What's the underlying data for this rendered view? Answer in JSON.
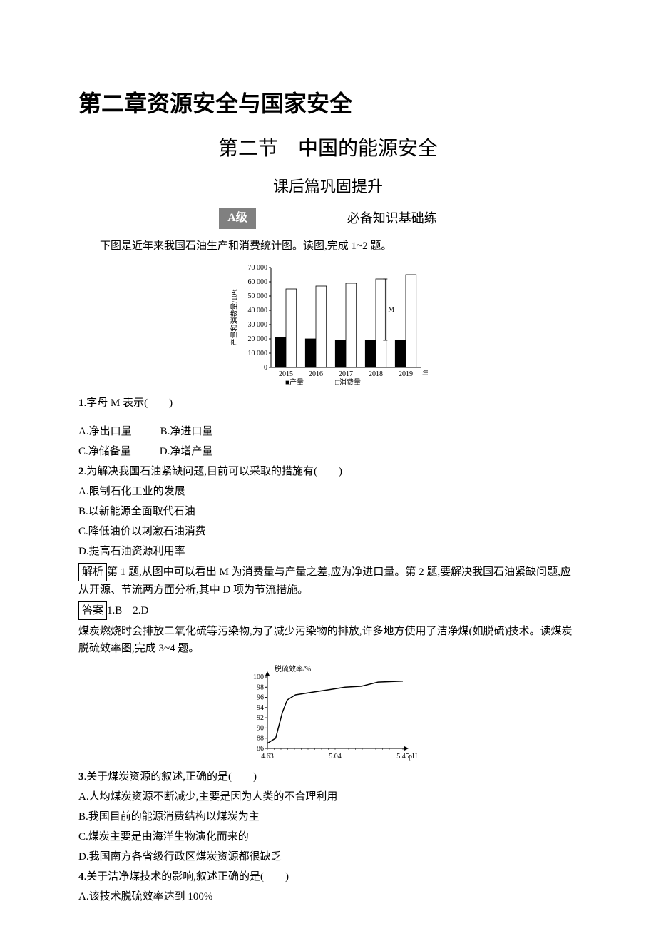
{
  "chapter_title": "第二章资源安全与国家安全",
  "section_title": "第二节　中国的能源安全",
  "subsection_title": "课后篇巩固提升",
  "level_badge": "A级",
  "level_text": "必备知识基础练",
  "intro1": "下图是近年来我国石油生产和消费统计图。读图,完成 1~2 题。",
  "chart1": {
    "type": "bar",
    "y_label": "产量和消费量/10⁴t",
    "y_ticks": [
      "0",
      "10 000",
      "20 000",
      "30 000",
      "40 000",
      "50 000",
      "60 000",
      "70 000"
    ],
    "y_max": 70000,
    "categories": [
      "2015",
      "2016",
      "2017",
      "2018",
      "2019"
    ],
    "x_label_suffix": "年份",
    "series": [
      {
        "name": "产量",
        "color": "#000000",
        "values": [
          21000,
          20000,
          19000,
          19000,
          19000
        ]
      },
      {
        "name": "消费量",
        "color": "#ffffff",
        "values": [
          55000,
          57000,
          59000,
          62000,
          65000
        ]
      }
    ],
    "annotation": {
      "text": "M",
      "x_index": 3
    },
    "legend": [
      "产量",
      "消费量"
    ],
    "legend_markers": [
      "■",
      "□"
    ],
    "font_size": 10,
    "axis_color": "#000000",
    "background_color": "#ffffff"
  },
  "q1": {
    "number": "1",
    "text": ".字母 M 表示(　　)",
    "options": {
      "A": "A.净出口量",
      "B": "B.净进口量",
      "C": "C.净储备量",
      "D": "D.净增产量"
    }
  },
  "q2": {
    "number": "2",
    "text": ".为解决我国石油紧缺问题,目前可以采取的措施有(　　)",
    "options": {
      "A": "A.限制石化工业的发展",
      "B": "B.以新能源全面取代石油",
      "C": "C.降低油价以刺激石油消费",
      "D": "D.提高石油资源利用率"
    }
  },
  "analysis_label": "解析",
  "analysis1": "第 1 题,从图中可以看出 M 为消费量与产量之差,应为净进口量。第 2 题,要解决我国石油紧缺问题,应从开源、节流两方面分析,其中 D 项为节流措施。",
  "answer_label": "答案",
  "answer1": "1.B　2.D",
  "intro2": "煤炭燃烧时会排放二氧化硫等污染物,为了减少污染物的排放,许多地方使用了洁净煤(如脱硫)技术。读煤炭脱硫效率图,完成 3~4 题。",
  "chart2": {
    "type": "line",
    "y_label": "脱硫效率/%",
    "y_ticks": [
      "86",
      "88",
      "90",
      "92",
      "94",
      "96",
      "98",
      "100"
    ],
    "y_min": 86,
    "y_max": 100,
    "x_ticks": [
      "4.63",
      "5.04",
      "5.45"
    ],
    "x_label": "pH",
    "data_points": [
      {
        "x": 4.63,
        "y": 87
      },
      {
        "x": 4.68,
        "y": 88
      },
      {
        "x": 4.72,
        "y": 93
      },
      {
        "x": 4.75,
        "y": 95.5
      },
      {
        "x": 4.8,
        "y": 96.5
      },
      {
        "x": 4.9,
        "y": 97
      },
      {
        "x": 5.0,
        "y": 97.5
      },
      {
        "x": 5.1,
        "y": 98
      },
      {
        "x": 5.2,
        "y": 98.2
      },
      {
        "x": 5.3,
        "y": 99
      },
      {
        "x": 5.45,
        "y": 99.2
      }
    ],
    "line_color": "#000000",
    "font_size": 10,
    "axis_color": "#000000",
    "background_color": "#ffffff"
  },
  "q3": {
    "number": "3",
    "text": ".关于煤炭资源的叙述,正确的是(　　)",
    "options": {
      "A": "A.人均煤炭资源不断减少,主要是因为人类的不合理利用",
      "B": "B.我国目前的能源消费结构以煤炭为主",
      "C": "C.煤炭主要是由海洋生物演化而来的",
      "D": "D.我国南方各省级行政区煤炭资源都很缺乏"
    }
  },
  "q4": {
    "number": "4",
    "text": ".关于洁净煤技术的影响,叙述正确的是(　　)",
    "options": {
      "A": "A.该技术脱硫效率达到 100%"
    }
  }
}
